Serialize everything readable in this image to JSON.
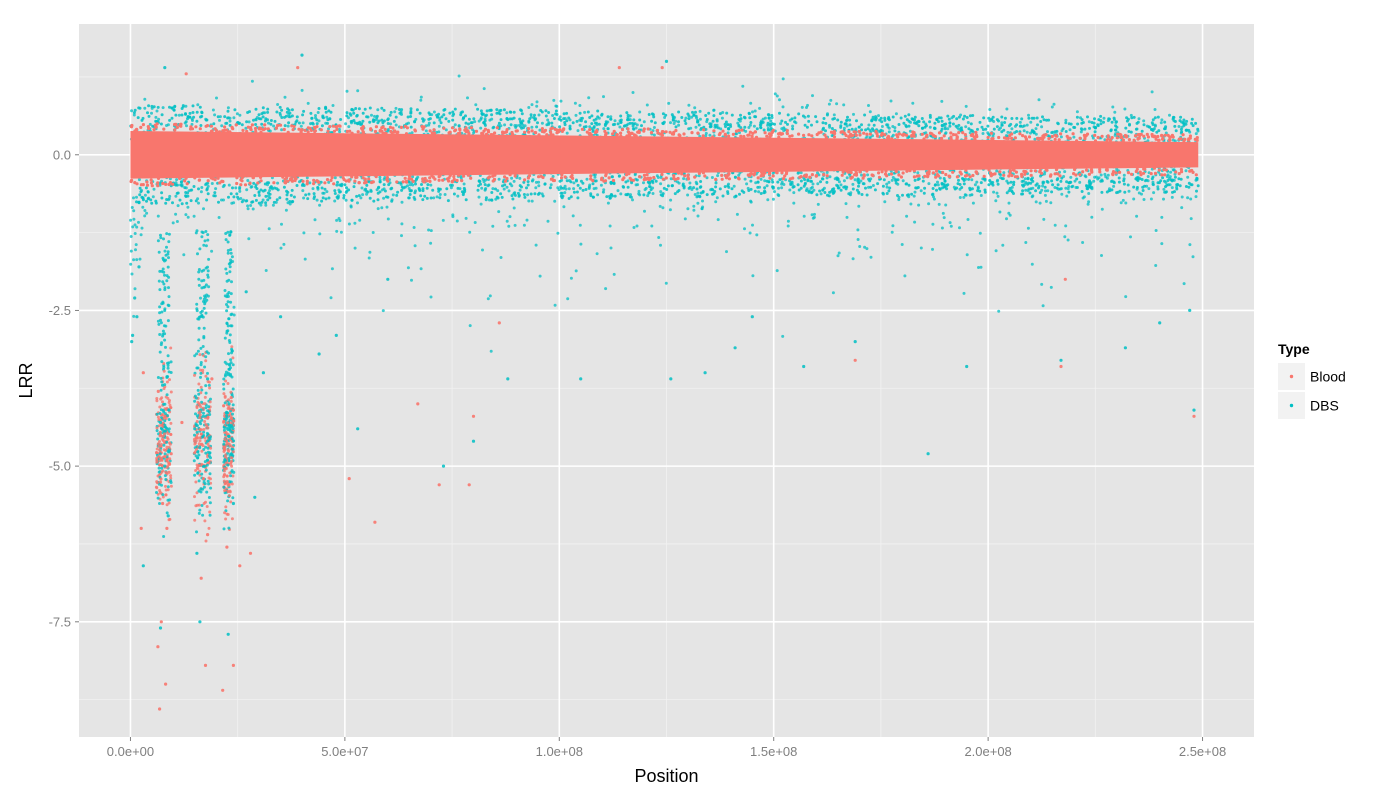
{
  "chart_data": {
    "type": "scatter",
    "title": "",
    "xlabel": "Position",
    "ylabel": "LRR",
    "xlim": [
      -12000000,
      262000000
    ],
    "ylim": [
      -9.35,
      2.1
    ],
    "x_ticks": [
      0,
      50000000,
      100000000,
      150000000,
      200000000,
      250000000
    ],
    "x_tick_labels": [
      "0.0e+00",
      "5.0e+07",
      "1.0e+08",
      "1.5e+08",
      "2.0e+08",
      "2.5e+08"
    ],
    "y_ticks": [
      0,
      -2.5,
      -5,
      -7.5
    ],
    "y_tick_labels": [
      "0.0",
      "-2.5",
      "-5.0",
      "-7.5"
    ],
    "grid": true,
    "legend": {
      "title": "Type",
      "placement": "right",
      "entries": [
        "Blood",
        "DBS"
      ]
    },
    "series": [
      {
        "name": "Blood",
        "color": "#F8766D",
        "x_range": [
          0,
          249000000
        ],
        "core_band": [
          -0.45,
          0.45
        ],
        "points": [
          [
            7000000,
            -4.5
          ],
          [
            8000000,
            -4.2
          ],
          [
            9000000,
            -5.1
          ],
          [
            6500000,
            -3.8
          ],
          [
            7500000,
            -5.6
          ],
          [
            8500000,
            -6.0
          ],
          [
            9500000,
            -4.8
          ],
          [
            15000000,
            -4.6
          ],
          [
            16000000,
            -4.0
          ],
          [
            17000000,
            -5.2
          ],
          [
            18000000,
            -6.1
          ],
          [
            19000000,
            -3.6
          ],
          [
            16500000,
            -6.8
          ],
          [
            22000000,
            -4.7
          ],
          [
            23000000,
            -5.3
          ],
          [
            24000000,
            -4.1
          ],
          [
            22500000,
            -6.3
          ],
          [
            23500000,
            -3.9
          ],
          [
            6800000,
            -8.9
          ],
          [
            8200000,
            -8.5
          ],
          [
            7200000,
            -7.5
          ],
          [
            6400000,
            -7.9
          ],
          [
            17500000,
            -8.2
          ],
          [
            21500000,
            -8.6
          ],
          [
            24000000,
            -8.2
          ],
          [
            13000000,
            1.3
          ],
          [
            39000000,
            1.4
          ],
          [
            114000000,
            1.4
          ],
          [
            124000000,
            1.4
          ],
          [
            86000000,
            -2.7
          ],
          [
            67000000,
            -4.0
          ],
          [
            79000000,
            -5.3
          ],
          [
            80000000,
            -4.2
          ],
          [
            72000000,
            -5.3
          ],
          [
            51000000,
            -5.2
          ],
          [
            57000000,
            -5.9
          ],
          [
            169000000,
            -3.3
          ],
          [
            218000000,
            -2.0
          ],
          [
            217000000,
            -3.4
          ],
          [
            248000000,
            -4.2
          ],
          [
            28000000,
            -6.4
          ],
          [
            25500000,
            -6.6
          ],
          [
            3000000,
            -3.5
          ],
          [
            2500000,
            -6.0
          ],
          [
            12000000,
            -4.3
          ]
        ]
      },
      {
        "name": "DBS",
        "color": "#00BFC4",
        "x_range": [
          0,
          249000000
        ],
        "core_band": [
          -1.0,
          1.0
        ],
        "points": [
          [
            1000000,
            -2.3
          ],
          [
            500000,
            -2.9
          ],
          [
            1500000,
            -2.6
          ],
          [
            2000000,
            -1.8
          ],
          [
            300000,
            -3.0
          ],
          [
            7000000,
            -4.3
          ],
          [
            8000000,
            -5.0
          ],
          [
            9000000,
            -4.1
          ],
          [
            7500000,
            -3.7
          ],
          [
            8800000,
            -5.8
          ],
          [
            15000000,
            -4.4
          ],
          [
            16000000,
            -5.4
          ],
          [
            17000000,
            -4.2
          ],
          [
            18000000,
            -3.6
          ],
          [
            15500000,
            -6.4
          ],
          [
            16200000,
            -7.5
          ],
          [
            22000000,
            -4.9
          ],
          [
            23000000,
            -4.0
          ],
          [
            24000000,
            -5.6
          ],
          [
            22800000,
            -7.7
          ],
          [
            7000000,
            -7.6
          ],
          [
            3000000,
            -6.6
          ],
          [
            8000000,
            1.4
          ],
          [
            40000000,
            1.6
          ],
          [
            125000000,
            1.5
          ],
          [
            60000000,
            -2.0
          ],
          [
            73000000,
            -5.0
          ],
          [
            80000000,
            -4.6
          ],
          [
            88000000,
            -3.6
          ],
          [
            105000000,
            -3.6
          ],
          [
            126000000,
            -3.6
          ],
          [
            134000000,
            -3.5
          ],
          [
            141000000,
            -3.1
          ],
          [
            145000000,
            -2.6
          ],
          [
            157000000,
            -3.4
          ],
          [
            169000000,
            -3.0
          ],
          [
            186000000,
            -4.8
          ],
          [
            195000000,
            -3.4
          ],
          [
            217000000,
            -3.3
          ],
          [
            232000000,
            -3.1
          ],
          [
            240000000,
            -2.7
          ],
          [
            247000000,
            -2.5
          ],
          [
            248000000,
            -4.1
          ],
          [
            53000000,
            -4.4
          ],
          [
            44000000,
            -3.2
          ],
          [
            29000000,
            -5.5
          ],
          [
            27000000,
            -2.2
          ],
          [
            31000000,
            -3.5
          ],
          [
            35000000,
            -2.6
          ],
          [
            48000000,
            -2.9
          ]
        ]
      }
    ]
  }
}
